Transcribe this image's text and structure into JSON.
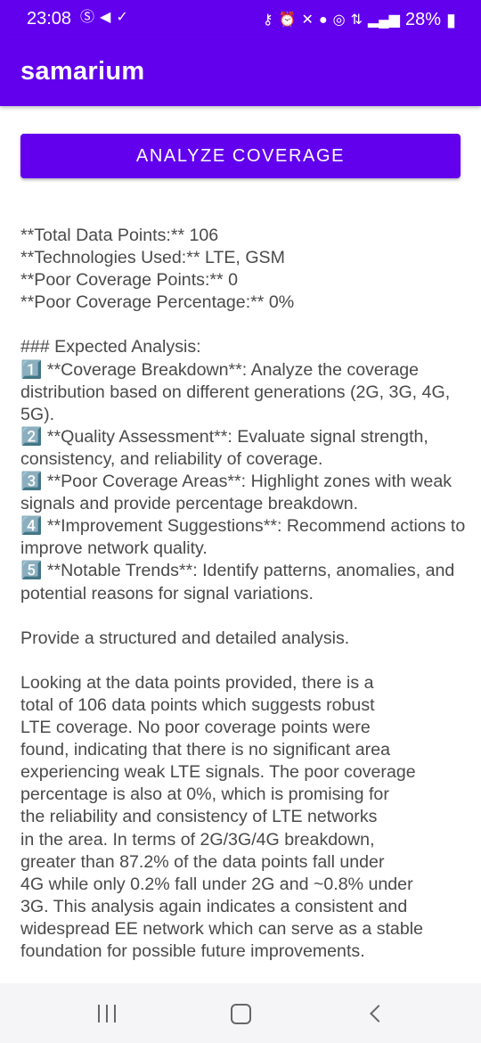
{
  "status_bar": {
    "time": "23:08",
    "battery": "28%",
    "notification_icons": [
      "skype-icon",
      "telegram-icon",
      "check-icon"
    ],
    "system_icons": [
      "vpn-key-icon",
      "alarm-icon",
      "mute-icon",
      "location-icon",
      "hotspot-icon",
      "data-icon",
      "signal-icon",
      "battery-icon"
    ]
  },
  "app_bar": {
    "title": "samarium"
  },
  "analyze_button": {
    "label": "ANALYZE COVERAGE"
  },
  "result_text": "**Total Data Points:** 106\n**Technologies Used:** LTE, GSM\n**Poor Coverage Points:** 0\n**Poor Coverage Percentage:** 0%\n\n### Expected Analysis:\n1️⃣ **Coverage Breakdown**: Analyze the coverage distribution based on different generations (2G, 3G, 4G, 5G).\n2️⃣ **Quality Assessment**: Evaluate signal strength, consistency, and reliability of coverage.\n3️⃣ **Poor Coverage Areas**: Highlight zones with weak signals and provide percentage breakdown.\n4️⃣ **Improvement Suggestions**: Recommend actions to improve network quality.\n5️⃣ **Notable Trends**: Identify patterns, anomalies, and potential reasons for signal variations.\n\nProvide a structured and detailed analysis.\n\nLooking at the data points provided, there is a\ntotal of 106 data points which suggests robust\nLTE coverage. No poor coverage points were\nfound, indicating that there is no significant area\nexperiencing weak LTE signals. The poor coverage\npercentage is also at 0%, which is promising for\nthe reliability and consistency of LTE networks\nin the area. In terms of 2G/3G/4G breakdown,\ngreater than 87.2% of the data points fall under\n4G while only 0.2% fall under 2G and ~0.8% under\n3G. This analysis again indicates a consistent and\nwidespread EE network which can serve as a stable\nfoundation for possible future improvements.",
  "colors": {
    "primary": "#6200ee",
    "text": "#4a4a4a",
    "nav_bar": "#f5f5f7"
  }
}
